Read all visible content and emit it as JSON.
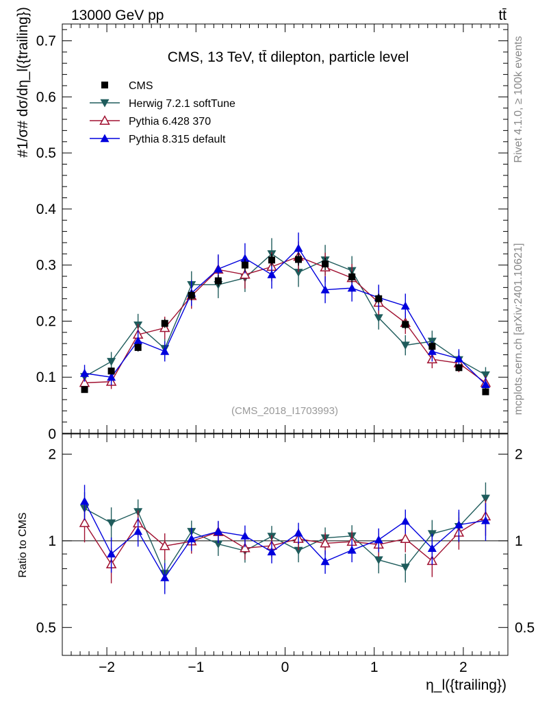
{
  "header": {
    "energy": "13000 GeV pp",
    "process": "tt̄"
  },
  "side_labels": {
    "rivet": "Rivet 4.1.0, ≥ 100k events",
    "site": "mcplots.cern.ch [arXiv:2401.10621]"
  },
  "chart_data": {
    "type": "line",
    "title": "CMS, 13 TeV, tt̄ dilepton, particle level",
    "analysis_id": "(CMS_2018_I1703993)",
    "xlabel": "η_l({trailing})",
    "ylabel": "#1/σ# dσ/dη_l({trailing})",
    "ratio_ylabel": "Ratio to CMS",
    "xlim": [
      -2.5,
      2.5
    ],
    "ylim": [
      0,
      0.73
    ],
    "ratio_ylim": [
      0.4,
      2.35
    ],
    "x_ticks": [
      -2,
      -1,
      0,
      1,
      2
    ],
    "x_tick_labels": [
      "−2",
      "−1",
      "0",
      "1",
      "2"
    ],
    "y_ticks": [
      0.1,
      0.2,
      0.3,
      0.4,
      0.5,
      0.6,
      0.7
    ],
    "y_tick_labels": [
      "0.1",
      "0.2",
      "0.3",
      "0.4",
      "0.5",
      "0.6",
      "0.7"
    ],
    "ratio_ticks": [
      0.5,
      1,
      2
    ],
    "ratio_tick_labels": [
      "0.5",
      "1",
      "2"
    ],
    "x": [
      -2.25,
      -1.95,
      -1.65,
      -1.35,
      -1.05,
      -0.75,
      -0.45,
      -0.15,
      0.15,
      0.45,
      0.75,
      1.05,
      1.35,
      1.65,
      1.95,
      2.25
    ],
    "series": [
      {
        "name": "CMS",
        "color": "#000000",
        "marker": "square",
        "values": [
          0.078,
          0.111,
          0.153,
          0.196,
          0.246,
          0.272,
          0.3,
          0.309,
          0.31,
          0.302,
          0.279,
          0.24,
          0.194,
          0.155,
          0.117,
          0.074
        ],
        "errors": [
          0.005,
          0.006,
          0.007,
          0.008,
          0.009,
          0.01,
          0.011,
          0.011,
          0.011,
          0.011,
          0.01,
          0.009,
          0.008,
          0.007,
          0.006,
          0.005
        ]
      },
      {
        "name": "Herwig 7.2.1 softTune",
        "color": "#1f5c5c",
        "marker": "triangle-down",
        "values": [
          0.101,
          0.128,
          0.193,
          0.151,
          0.265,
          0.265,
          0.277,
          0.32,
          0.287,
          0.309,
          0.29,
          0.206,
          0.157,
          0.164,
          0.131,
          0.104
        ],
        "errors": [
          0.014,
          0.017,
          0.02,
          0.018,
          0.024,
          0.024,
          0.025,
          0.028,
          0.026,
          0.027,
          0.026,
          0.021,
          0.018,
          0.019,
          0.016,
          0.014
        ]
      },
      {
        "name": "Pythia 6.428 370",
        "color": "#a01030",
        "marker": "triangle-open",
        "values": [
          0.09,
          0.092,
          0.176,
          0.188,
          0.245,
          0.292,
          0.283,
          0.297,
          0.315,
          0.296,
          0.277,
          0.233,
          0.197,
          0.132,
          0.125,
          0.09
        ],
        "errors": [
          0.013,
          0.013,
          0.019,
          0.02,
          0.023,
          0.025,
          0.025,
          0.026,
          0.027,
          0.026,
          0.025,
          0.022,
          0.02,
          0.016,
          0.016,
          0.013
        ]
      },
      {
        "name": "Pythia 8.315 default",
        "color": "#0000dd",
        "marker": "triangle-up",
        "values": [
          0.107,
          0.1,
          0.165,
          0.146,
          0.25,
          0.293,
          0.312,
          0.283,
          0.33,
          0.256,
          0.259,
          0.242,
          0.227,
          0.146,
          0.133,
          0.087
        ],
        "errors": [
          0.015,
          0.014,
          0.019,
          0.018,
          0.023,
          0.026,
          0.027,
          0.025,
          0.028,
          0.024,
          0.024,
          0.023,
          0.022,
          0.018,
          0.017,
          0.013
        ]
      }
    ]
  }
}
